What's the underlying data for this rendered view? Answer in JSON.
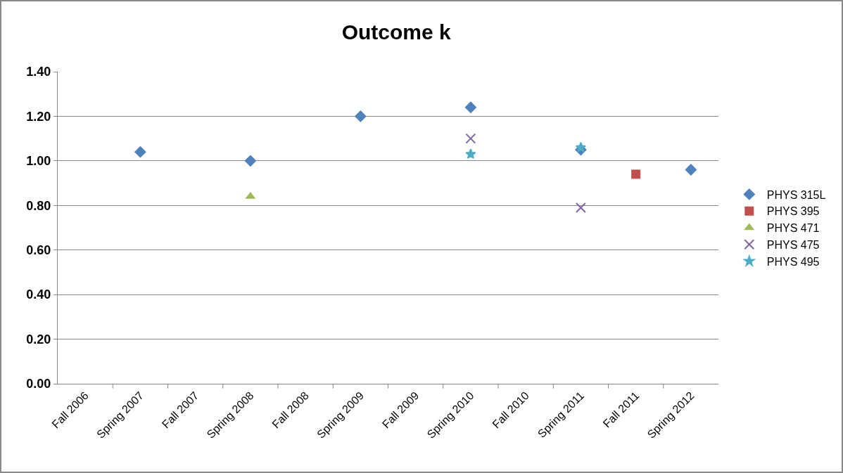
{
  "chart_data": {
    "type": "scatter",
    "title": "Outcome k",
    "categories": [
      "Fall 2006",
      "Spring 2007",
      "Fall 2007",
      "Spring 2008",
      "Fall 2008",
      "Spring 2009",
      "Fall 2009",
      "Spring 2010",
      "Fall 2010",
      "Spring 2011",
      "Fall 2011",
      "Spring 2012"
    ],
    "series": [
      {
        "name": "PHYS 315L",
        "color": "#4f81bd",
        "marker": "diamond",
        "values": [
          null,
          1.04,
          null,
          1.0,
          null,
          1.2,
          null,
          1.24,
          null,
          1.05,
          null,
          0.96
        ]
      },
      {
        "name": "PHYS 395",
        "color": "#c0504d",
        "marker": "square",
        "values": [
          null,
          null,
          null,
          null,
          null,
          null,
          null,
          null,
          null,
          null,
          0.94,
          null
        ]
      },
      {
        "name": "PHYS 471",
        "color": "#9bbb59",
        "marker": "triangle",
        "values": [
          null,
          null,
          null,
          0.84,
          null,
          null,
          null,
          null,
          null,
          null,
          null,
          null
        ]
      },
      {
        "name": "PHYS 475",
        "color": "#8064a2",
        "marker": "cross",
        "values": [
          null,
          null,
          null,
          null,
          null,
          null,
          null,
          1.1,
          null,
          0.79,
          null,
          null
        ]
      },
      {
        "name": "PHYS 495",
        "color": "#4bacc6",
        "marker": "star",
        "values": [
          null,
          null,
          null,
          null,
          null,
          null,
          null,
          1.03,
          null,
          1.06,
          null,
          null
        ]
      }
    ],
    "ylim": [
      0,
      1.4
    ],
    "yticks": [
      {
        "value": 0,
        "label": "0.00"
      },
      {
        "value": 0.2,
        "label": "0.20"
      },
      {
        "value": 0.4,
        "label": "0.40"
      },
      {
        "value": 0.6,
        "label": "0.60"
      },
      {
        "value": 0.8,
        "label": "0.80"
      },
      {
        "value": 1,
        "label": "1.00"
      },
      {
        "value": 1.2,
        "label": "1.20"
      },
      {
        "value": 1.4,
        "label": "1.40"
      }
    ],
    "grid": "y",
    "legend": "right"
  }
}
